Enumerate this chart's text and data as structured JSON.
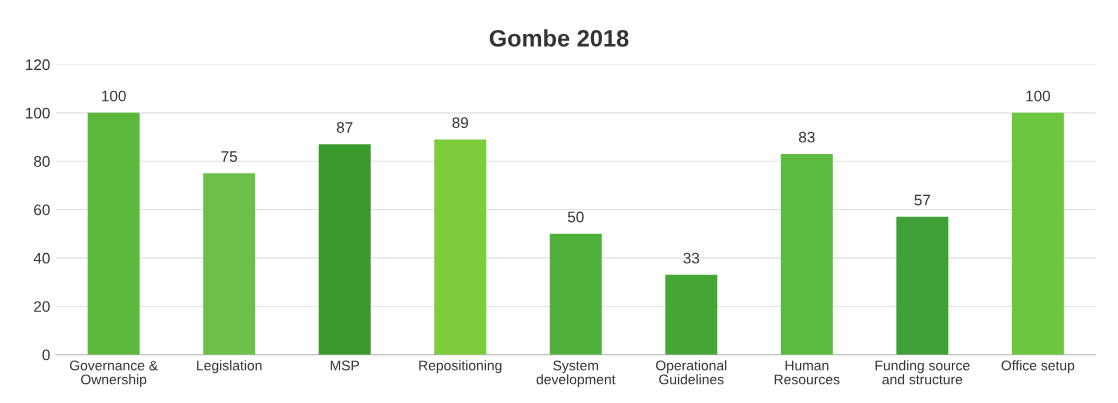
{
  "chart_data": {
    "type": "bar",
    "title": "Gombe 2018",
    "categories": [
      "Governance &\nOwnership",
      "Legislation",
      "MSP",
      "Repositioning",
      "System\ndevelopment",
      "Operational\nGuidelines",
      "Human\nResources",
      "Funding source\nand structure",
      "Office setup"
    ],
    "values": [
      100,
      75,
      87,
      89,
      50,
      33,
      83,
      57,
      100
    ],
    "colors": [
      "#5cb83a",
      "#6cc04a",
      "#3a9a2e",
      "#7ccc3c",
      "#4fb13c",
      "#45a535",
      "#5bbb40",
      "#3fa038",
      "#6dc640"
    ],
    "ylim": [
      0,
      120
    ],
    "yticks": [
      0,
      20,
      40,
      60,
      80,
      100,
      120
    ],
    "grid": "y",
    "data_labels": true
  }
}
